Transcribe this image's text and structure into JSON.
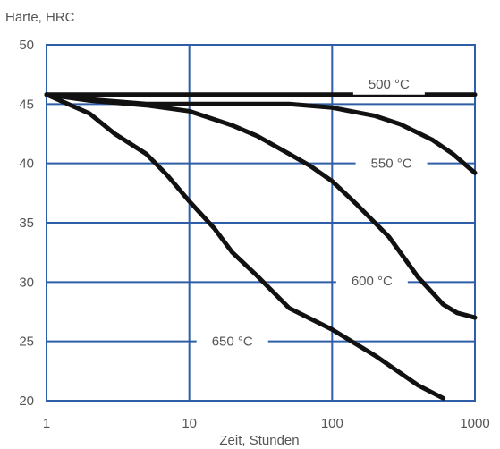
{
  "chart_data": {
    "type": "line",
    "ylabel": "Härte, HRC",
    "xlabel": "Zeit, Stunden",
    "x_scale": "log",
    "xlim": [
      1,
      1000
    ],
    "ylim": [
      20,
      50
    ],
    "x_ticks": [
      {
        "value": 1,
        "label": "1"
      },
      {
        "value": 10,
        "label": "10"
      },
      {
        "value": 100,
        "label": "100"
      },
      {
        "value": 1000,
        "label": "1000"
      }
    ],
    "y_ticks": [
      {
        "value": 20,
        "label": "20"
      },
      {
        "value": 25,
        "label": "25"
      },
      {
        "value": 30,
        "label": "30"
      },
      {
        "value": 35,
        "label": "35"
      },
      {
        "value": 40,
        "label": "40"
      },
      {
        "value": 45,
        "label": "45"
      },
      {
        "value": 50,
        "label": "50"
      }
    ],
    "grid": true,
    "colors": {
      "grid": "#2e5ea8",
      "series": "#111111",
      "text": "#555555"
    },
    "series": [
      {
        "name": "500 °C",
        "label_at": {
          "x": 250,
          "y": 46.7
        },
        "points": [
          [
            1,
            45.8
          ],
          [
            1000,
            45.8
          ]
        ]
      },
      {
        "name": "550 °C",
        "label_at": {
          "x": 260,
          "y": 40
        },
        "points": [
          [
            1,
            45.8
          ],
          [
            2,
            45.4
          ],
          [
            5,
            45.0
          ],
          [
            20,
            45.0
          ],
          [
            50,
            45.0
          ],
          [
            100,
            44.7
          ],
          [
            200,
            44.0
          ],
          [
            300,
            43.3
          ],
          [
            500,
            42.0
          ],
          [
            700,
            40.8
          ],
          [
            1000,
            39.2
          ]
        ]
      },
      {
        "name": "600 °C",
        "label_at": {
          "x": 190,
          "y": 30.1
        },
        "points": [
          [
            1,
            45.8
          ],
          [
            2,
            45.3
          ],
          [
            5,
            44.9
          ],
          [
            10,
            44.4
          ],
          [
            20,
            43.2
          ],
          [
            30,
            42.3
          ],
          [
            50,
            40.8
          ],
          [
            70,
            39.8
          ],
          [
            100,
            38.5
          ],
          [
            150,
            36.5
          ],
          [
            250,
            33.8
          ],
          [
            400,
            30.4
          ],
          [
            600,
            28.1
          ],
          [
            750,
            27.4
          ],
          [
            1000,
            27.0
          ]
        ]
      },
      {
        "name": "650 °C",
        "label_at": {
          "x": 20,
          "y": 25.0
        },
        "points": [
          [
            1,
            45.8
          ],
          [
            2,
            44.2
          ],
          [
            3,
            42.5
          ],
          [
            5,
            40.8
          ],
          [
            7,
            39.0
          ],
          [
            10,
            36.8
          ],
          [
            15,
            34.5
          ],
          [
            20,
            32.5
          ],
          [
            30,
            30.5
          ],
          [
            50,
            27.8
          ],
          [
            100,
            26.0
          ],
          [
            200,
            23.8
          ],
          [
            400,
            21.3
          ],
          [
            600,
            20.2
          ]
        ]
      }
    ]
  }
}
